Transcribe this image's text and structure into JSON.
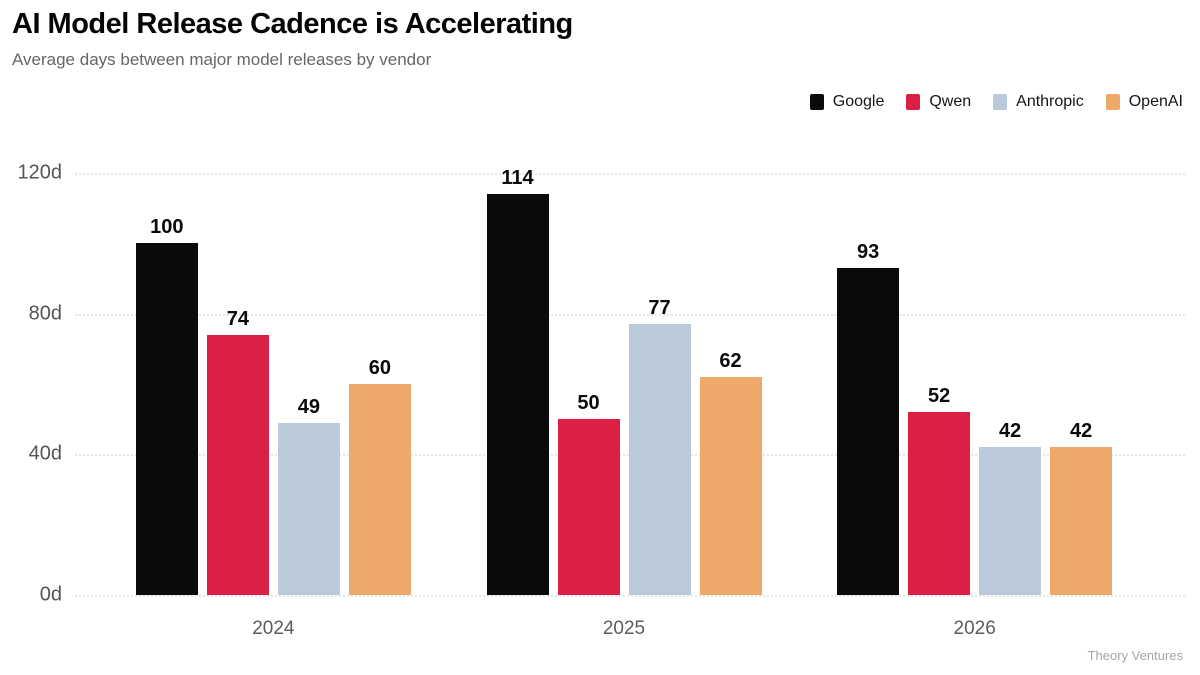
{
  "header": {
    "title": "AI Model Release Cadence is Accelerating",
    "subtitle": "Average days between major model releases by vendor"
  },
  "footer": {
    "credit": "Theory Ventures"
  },
  "colors": {
    "google": "#0a0a0a",
    "qwen": "#db1f45",
    "anthropic": "#bacadb",
    "openai": "#eda86a",
    "gridline": "#e5e5e5"
  },
  "chart_data": {
    "type": "bar",
    "title": "AI Model Release Cadence is Accelerating",
    "subtitle": "Average days between major model releases by vendor",
    "categories": [
      "2024",
      "2025",
      "2026"
    ],
    "series": [
      {
        "name": "Google",
        "color": "#0a0a0a",
        "values": [
          100,
          114,
          93
        ]
      },
      {
        "name": "Qwen",
        "color": "#db1f45",
        "values": [
          74,
          50,
          52
        ]
      },
      {
        "name": "Anthropic",
        "color": "#bacadb",
        "values": [
          49,
          77,
          42
        ]
      },
      {
        "name": "OpenAI",
        "color": "#eda86a",
        "values": [
          60,
          62,
          42
        ]
      }
    ],
    "xlabel": "",
    "ylabel": "",
    "ylim": [
      0,
      120
    ],
    "yticks": [
      {
        "label": "0d",
        "value": 0
      },
      {
        "label": "40d",
        "value": 40
      },
      {
        "label": "80d",
        "value": 80
      },
      {
        "label": "120d",
        "value": 120
      }
    ],
    "grid": "horizontal-dotted",
    "legend_position": "top-right",
    "bar_value_labels": true
  }
}
